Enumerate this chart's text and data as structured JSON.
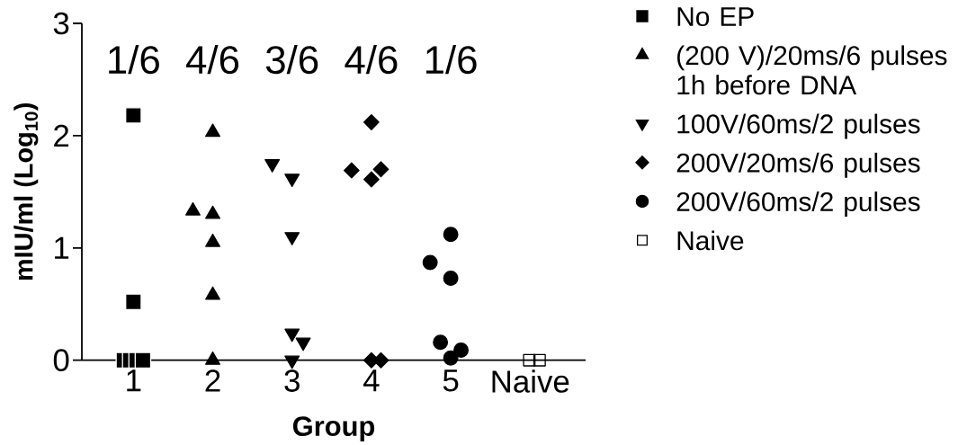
{
  "chart_data": {
    "type": "scatter",
    "xlabel": "Group",
    "ylabel": "mIU/ml (Log$_{10}$)",
    "xlim": [
      0.35,
      6.7
    ],
    "xticks": [
      1,
      2,
      3,
      4,
      5,
      {
        "value": 6,
        "label": "Naive"
      }
    ],
    "ylim": [
      0,
      3
    ],
    "yticks": [
      0,
      1,
      2,
      3
    ],
    "legend": "top right",
    "annotations": [
      "1/6",
      "4/6",
      "3/6",
      "4/6",
      "1/6"
    ],
    "series": [
      {
        "name": "No EP",
        "color": "#000000",
        "marker": "square",
        "x": [
          1.0,
          1.0,
          0.88,
          0.96,
          1.04,
          1.12
        ],
        "values": [
          2.18,
          0.52,
          0,
          0,
          0,
          0
        ]
      },
      {
        "name": "(200 V)/20ms/6 pulses 1h before DNA",
        "color": "#000000",
        "marker": "triangle",
        "x": [
          2.0,
          1.75,
          2.0,
          2.0,
          2.0,
          2.0
        ],
        "values": [
          2.03,
          1.33,
          1.3,
          1.05,
          0.58,
          0
        ]
      },
      {
        "name": "100V/60ms/2 pulses",
        "color": "#000000",
        "marker": "triangle-down",
        "x": [
          2.75,
          3.0,
          3.0,
          3.0,
          3.14,
          3.0
        ],
        "values": [
          1.75,
          1.62,
          1.1,
          0.24,
          0.16,
          0
        ]
      },
      {
        "name": "200V/20ms/6 pulses",
        "color": "#000000",
        "marker": "diamond",
        "x": [
          4.0,
          3.75,
          4.12,
          4.0,
          4.0,
          4.12
        ],
        "values": [
          2.12,
          1.69,
          1.7,
          1.61,
          0,
          0
        ]
      },
      {
        "name": "200V/60ms/2 pulses",
        "color": "#000000",
        "marker": "circle",
        "x": [
          5.0,
          4.74,
          5.0,
          4.87,
          5.13,
          5.0
        ],
        "values": [
          1.12,
          0.87,
          0.73,
          0.16,
          0.09,
          0.02
        ]
      },
      {
        "name": "Naive",
        "color": "#000000",
        "marker": "square-open",
        "x": [
          5.99,
          6.12
        ],
        "values": [
          0,
          0
        ]
      }
    ]
  }
}
